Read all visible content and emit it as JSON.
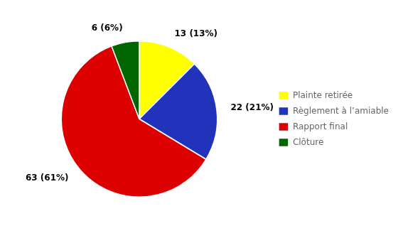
{
  "chart_data": {
    "type": "pie",
    "categories": [
      "Plainte retirée",
      "Règlement à l’amiable",
      "Rapport final",
      "Clôture"
    ],
    "values": [
      13,
      22,
      63,
      6
    ],
    "value_labels": [
      "13 (13%)",
      "22 (21%)",
      "63 (61%)",
      "6 (6%)"
    ],
    "colors": [
      "#ffff00",
      "#2233bb",
      "#dd0000",
      "#006600"
    ],
    "data_labels": true,
    "legend": "right"
  }
}
